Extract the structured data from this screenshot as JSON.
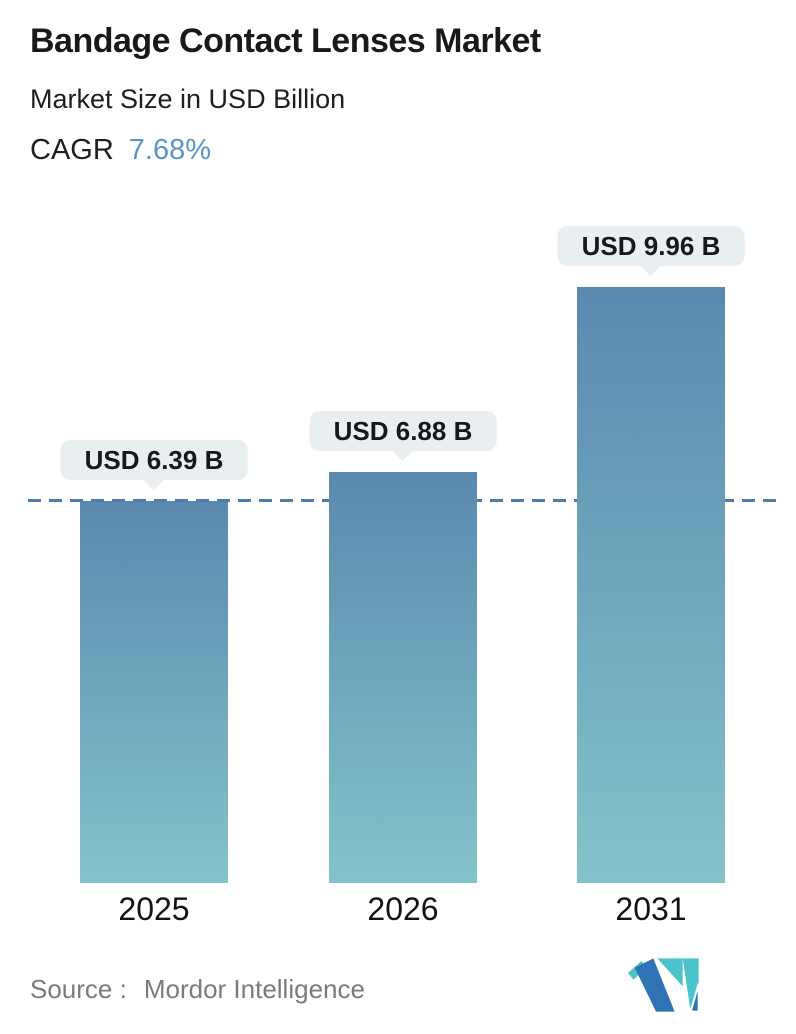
{
  "header": {
    "title": "Bandage Contact Lenses Market",
    "subtitle": "Market Size in USD Billion",
    "cagr_label": "CAGR",
    "cagr_value": "7.68%"
  },
  "chart_data": {
    "type": "bar",
    "categories": [
      "2025",
      "2026",
      "2031"
    ],
    "values": [
      6.39,
      6.88,
      9.96
    ],
    "value_labels": [
      "USD 6.39 B",
      "USD 6.88 B",
      "USD 9.96 B"
    ],
    "title": "Bandage Contact Lenses Market",
    "subtitle": "Market Size in USD Billion",
    "xlabel": "",
    "ylabel": "",
    "ylim": [
      0,
      10.5
    ],
    "grid": false,
    "legend": false,
    "baseline_value": 6.39,
    "baseline_style": "dashed"
  },
  "colors": {
    "accent_blue": "#5d94c5",
    "bar_gradient_top": "#5b89ae",
    "bar_gradient_bottom": "#84c3cb",
    "bubble_background": "#e9eef0",
    "dashed_line": "#4e7da8",
    "text_dark": "#191919",
    "source_gray": "#7b7b7b",
    "logo_blue": "#2e74b4",
    "logo_teal": "#4cc2cc"
  },
  "footer": {
    "source_label": "Source :",
    "source_value": "Mordor Intelligence",
    "logo": "mordor-intelligence-logo"
  }
}
